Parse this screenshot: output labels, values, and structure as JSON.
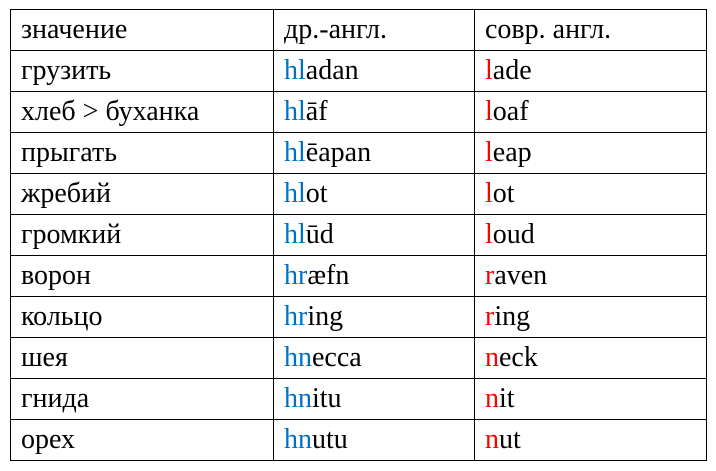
{
  "colors": {
    "old_english_prefix": "#0070C0",
    "modern_english_prefix": "#FF0000"
  },
  "headers": [
    "значение",
    "др.-англ.",
    "совр. англ."
  ],
  "rows": [
    {
      "meaning": "грузить",
      "oe_prefix": "hl",
      "oe_rest": "adan",
      "me_prefix": "l",
      "me_rest": "ade"
    },
    {
      "meaning": "хлеб > буханка",
      "oe_prefix": "hl",
      "oe_rest": "āf",
      "me_prefix": "l",
      "me_rest": "oaf"
    },
    {
      "meaning": "прыгать",
      "oe_prefix": "hl",
      "oe_rest": "ēapan",
      "me_prefix": "l",
      "me_rest": "eap"
    },
    {
      "meaning": "жребий",
      "oe_prefix": "hl",
      "oe_rest": "ot",
      "me_prefix": "l",
      "me_rest": "ot"
    },
    {
      "meaning": "громкий",
      "oe_prefix": "hl",
      "oe_rest": "ūd",
      "me_prefix": "l",
      "me_rest": "oud"
    },
    {
      "meaning": "ворон",
      "oe_prefix": "hr",
      "oe_rest": "æfn",
      "me_prefix": "r",
      "me_rest": "aven"
    },
    {
      "meaning": "кольцо",
      "oe_prefix": "hr",
      "oe_rest": "ing",
      "me_prefix": "r",
      "me_rest": "ing"
    },
    {
      "meaning": "шея",
      "oe_prefix": "hn",
      "oe_rest": "ecca",
      "me_prefix": "n",
      "me_rest": "eck"
    },
    {
      "meaning": "гнида",
      "oe_prefix": "hn",
      "oe_rest": "itu",
      "me_prefix": "n",
      "me_rest": "it"
    },
    {
      "meaning": "орех",
      "oe_prefix": "hn",
      "oe_rest": "utu",
      "me_prefix": "n",
      "me_rest": "ut"
    }
  ]
}
